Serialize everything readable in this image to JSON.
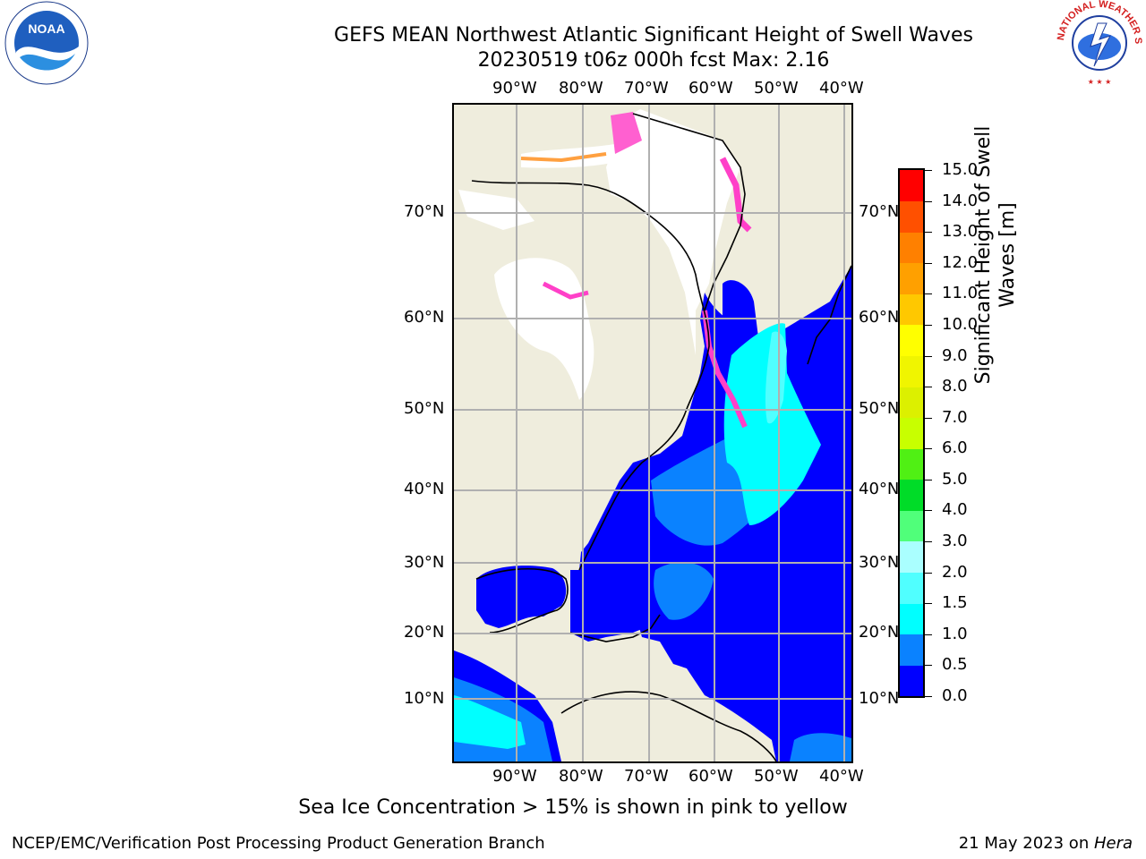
{
  "title_line1": "GEFS MEAN Northwest Atlantic Significant Height of Swell Waves",
  "title_line2": "20230519 t06z 000h fcst   Max: 2.16",
  "map": {
    "lon_labels": [
      "90°W",
      "80°W",
      "70°W",
      "60°W",
      "50°W",
      "40°W"
    ],
    "lat_labels": [
      "70°N",
      "60°N",
      "50°N",
      "40°N",
      "30°N",
      "20°N",
      "10°N"
    ],
    "colors": {
      "land": "#efeddd",
      "ice_mask": "#ffffff",
      "grid": "#b0b0b0"
    }
  },
  "colorbar": {
    "title": "Significant Height of Swell Waves [m]",
    "title_line1": "Significant Height of Swell",
    "title_line2": "Waves [m]",
    "ticks": [
      "15.0",
      "14.0",
      "13.0",
      "12.0",
      "11.0",
      "10.0",
      "9.0",
      "8.0",
      "7.0",
      "6.0",
      "5.0",
      "4.0",
      "3.0",
      "2.0",
      "1.5",
      "1.0",
      "0.5",
      "0.0"
    ],
    "bins": [
      {
        "from": 0.0,
        "to": 0.5,
        "color": "#0000ff"
      },
      {
        "from": 0.5,
        "to": 1.0,
        "color": "#0a82ff"
      },
      {
        "from": 1.0,
        "to": 1.5,
        "color": "#00ffff"
      },
      {
        "from": 1.5,
        "to": 2.0,
        "color": "#50ffff"
      },
      {
        "from": 2.0,
        "to": 3.0,
        "color": "#aaffff"
      },
      {
        "from": 3.0,
        "to": 4.0,
        "color": "#50ff7a"
      },
      {
        "from": 4.0,
        "to": 5.0,
        "color": "#00dc28"
      },
      {
        "from": 5.0,
        "to": 6.0,
        "color": "#50f014"
      },
      {
        "from": 6.0,
        "to": 7.0,
        "color": "#c8ff00"
      },
      {
        "from": 7.0,
        "to": 8.0,
        "color": "#dcf000"
      },
      {
        "from": 8.0,
        "to": 9.0,
        "color": "#f0f500"
      },
      {
        "from": 9.0,
        "to": 10.0,
        "color": "#ffff00"
      },
      {
        "from": 10.0,
        "to": 11.0,
        "color": "#ffc800"
      },
      {
        "from": 11.0,
        "to": 12.0,
        "color": "#ffa000"
      },
      {
        "from": 12.0,
        "to": 13.0,
        "color": "#ff8000"
      },
      {
        "from": 13.0,
        "to": 14.0,
        "color": "#ff5000"
      },
      {
        "from": 14.0,
        "to": 15.0,
        "color": "#ff0000"
      }
    ]
  },
  "note": "Sea Ice Concentration > 15% is shown in pink to yellow",
  "footer_left": "NCEP/EMC/Verification Post Processing Product Generation Branch",
  "footer_right_prefix": "21 May 2023 on ",
  "footer_right_host": "Hera",
  "logos": {
    "left": "noaa-logo",
    "right": "nws-logo",
    "left_text": "NOAA",
    "right_text": "NATIONAL WEATHER SERVICE"
  }
}
